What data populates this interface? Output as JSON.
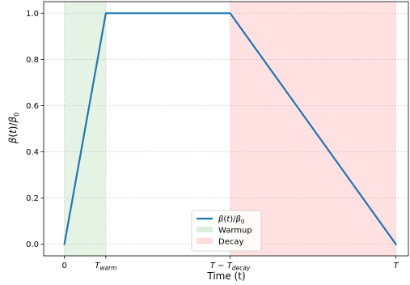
{
  "chart_data": {
    "type": "line",
    "xlabel": "Time (t)",
    "ylabel": "β(t)/β₀",
    "ylim": [
      -0.05,
      1.05
    ],
    "xlim": [
      -0.0625,
      1.0375
    ],
    "grid": true,
    "legend_position": "bottom-center",
    "x_ticks": [
      {
        "value": 0,
        "label": "0",
        "sub": ""
      },
      {
        "value": 0.125,
        "label": "T",
        "sub": "warm"
      },
      {
        "value": 0.5,
        "label": "T − T",
        "sub": "decay"
      },
      {
        "value": 1.0,
        "label": "T",
        "sub": ""
      }
    ],
    "y_ticks": [
      {
        "value": 0.0,
        "label": "0.0"
      },
      {
        "value": 0.2,
        "label": "0.2"
      },
      {
        "value": 0.4,
        "label": "0.4"
      },
      {
        "value": 0.6,
        "label": "0.6"
      },
      {
        "value": 0.8,
        "label": "0.8"
      },
      {
        "value": 1.0,
        "label": "1.0"
      }
    ],
    "series": [
      {
        "name": "β(t)/β₀",
        "color": "#1f77b4",
        "x": [
          0,
          0.125,
          0.5,
          1.0
        ],
        "y": [
          0,
          1,
          1,
          0
        ]
      }
    ],
    "regions": [
      {
        "name": "Warmup",
        "x": [
          0,
          0.125
        ],
        "color": "#2ca02c",
        "opacity": 0.12
      },
      {
        "name": "Decay",
        "x": [
          0.5,
          1.0
        ],
        "color": "#ff6b6b",
        "opacity": 0.2
      }
    ]
  }
}
